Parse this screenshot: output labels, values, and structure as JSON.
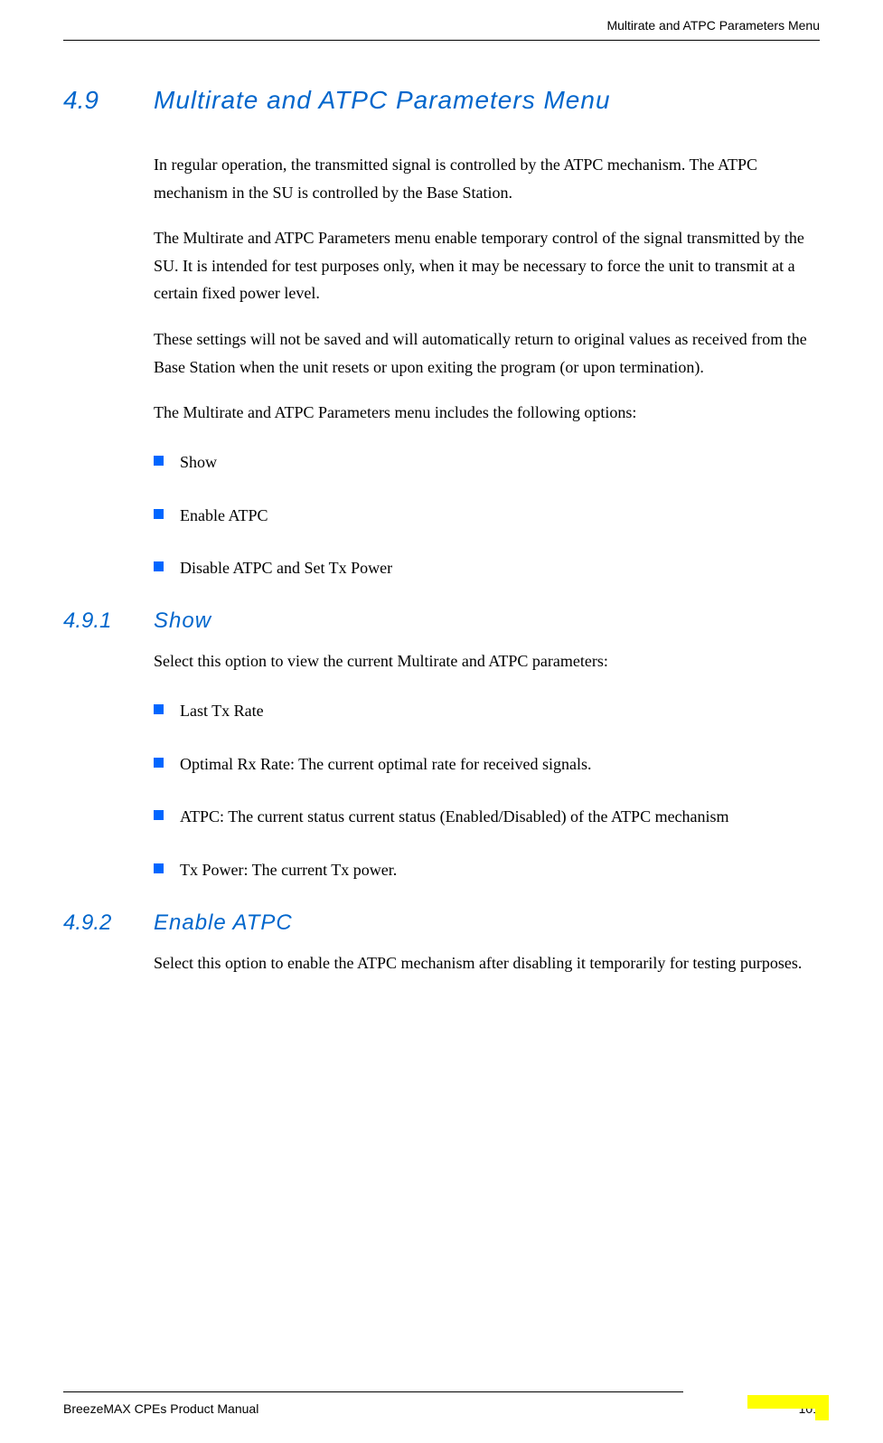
{
  "header": {
    "title": "Multirate and ATPC Parameters Menu"
  },
  "section": {
    "number": "4.9",
    "title": "Multirate and ATPC Parameters Menu"
  },
  "paragraphs": {
    "p1": "In regular operation, the transmitted signal is controlled by the ATPC mechanism. The ATPC mechanism in the SU is controlled by the Base Station.",
    "p2": "The Multirate and ATPC Parameters menu enable temporary control of the signal transmitted by the SU. It is intended for test purposes only, when it may be necessary to force the unit to transmit at a certain fixed power level.",
    "p3": "These settings will not be saved and will automatically return to original values as received from the Base Station when the unit resets or upon exiting the program (or upon termination).",
    "p4": "The Multirate and ATPC Parameters menu includes the following options:"
  },
  "mainBullets": {
    "b1": "Show",
    "b2": "Enable ATPC",
    "b3": "Disable ATPC and Set Tx Power"
  },
  "subsection1": {
    "number": "4.9.1",
    "title": "Show",
    "intro": "Select this option to view the current Multirate and ATPC parameters:",
    "bullets": {
      "b1": "Last Tx Rate",
      "b2": "Optimal Rx Rate: The current optimal rate for received signals.",
      "b3": "ATPC: The current status current status (Enabled/Disabled) of the ATPC mechanism",
      "b4": "Tx Power: The current Tx power."
    }
  },
  "subsection2": {
    "number": "4.9.2",
    "title": "Enable ATPC",
    "text": "Select this option to enable the ATPC mechanism after disabling it temporarily for testing purposes."
  },
  "footer": {
    "manual": "BreezeMAX CPEs Product Manual",
    "page": "101"
  },
  "colors": {
    "heading": "#0066cc",
    "bullet": "#0066ff",
    "text": "#000000",
    "marker": "#ffff00"
  }
}
